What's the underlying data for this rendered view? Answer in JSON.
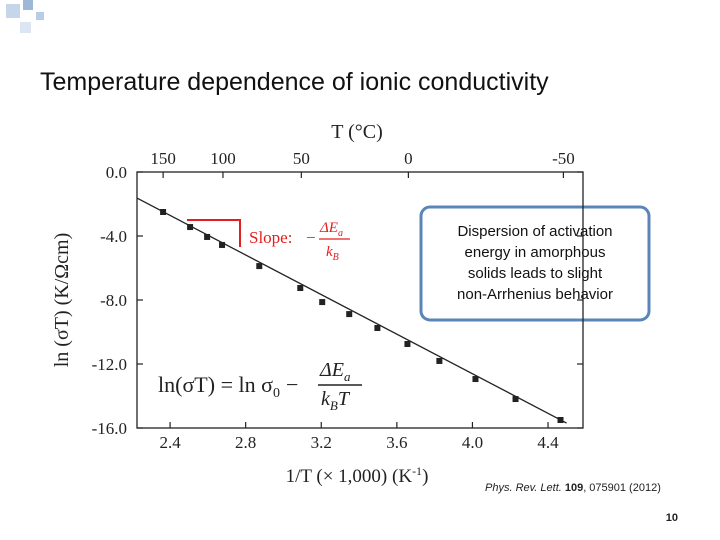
{
  "title": "Temperature dependence of ionic conductivity",
  "chart_data": {
    "type": "scatter",
    "x_label": {
      "main": "1/T (× 1,000) (K",
      "sup": "-1",
      "close": ")"
    },
    "y_label": "ln (σT) (K/Ωcm)",
    "top_axis_label": "T (°C)",
    "top_ticks": [
      150,
      100,
      50,
      0,
      -50
    ],
    "xlim": [
      2.225,
      4.585
    ],
    "ylim": [
      -16,
      0
    ],
    "xticks": [
      2.4,
      2.8,
      3.2,
      3.6,
      {
        "value": 4.0,
        "label": "4.0"
      },
      4.4
    ],
    "yticks": [
      {
        "value": 0,
        "label": "0.0"
      },
      {
        "value": -4,
        "label": "-4.0"
      },
      {
        "value": -8,
        "label": "-8.0"
      },
      {
        "value": -12,
        "label": "-12.0"
      },
      {
        "value": -16,
        "label": "-16.0"
      }
    ],
    "x": [
      2.363,
      2.506,
      2.596,
      2.675,
      2.872,
      3.089,
      3.205,
      3.348,
      3.497,
      3.656,
      3.825,
      4.016,
      4.228,
      4.466
    ],
    "values": [
      -2.5,
      -3.44,
      -4.06,
      -4.56,
      -5.88,
      -7.25,
      -8.13,
      -8.88,
      -9.75,
      -10.75,
      -11.81,
      -12.94,
      -14.19,
      -15.5
    ],
    "color": "#222222",
    "fit_line": {
      "x": [
        2.225,
        4.498
      ],
      "values": [
        -1.63,
        -15.69
      ],
      "color": "#222222"
    },
    "slope": {
      "label": "Slope:",
      "minus": "−",
      "num": "ΔE",
      "num_sub": "a",
      "den": "k",
      "den_sub": "B"
    },
    "equation": {
      "lhs": "ln(σT) = ln σ",
      "lhs_sub": "0",
      "minus": "−",
      "num": "ΔE",
      "num_sub": "a",
      "den": "k",
      "den_sub": "B",
      "den_tail": "T"
    },
    "callout": [
      "Dispersion of activation",
      "energy in amorphous",
      "solids leads to slight",
      "non-Arrhenius behavior"
    ]
  },
  "reference": {
    "journal": "Phys. Rev. Lett.",
    "volume": "109",
    "rest": ", 075901 (2012)"
  },
  "page_number": "10"
}
